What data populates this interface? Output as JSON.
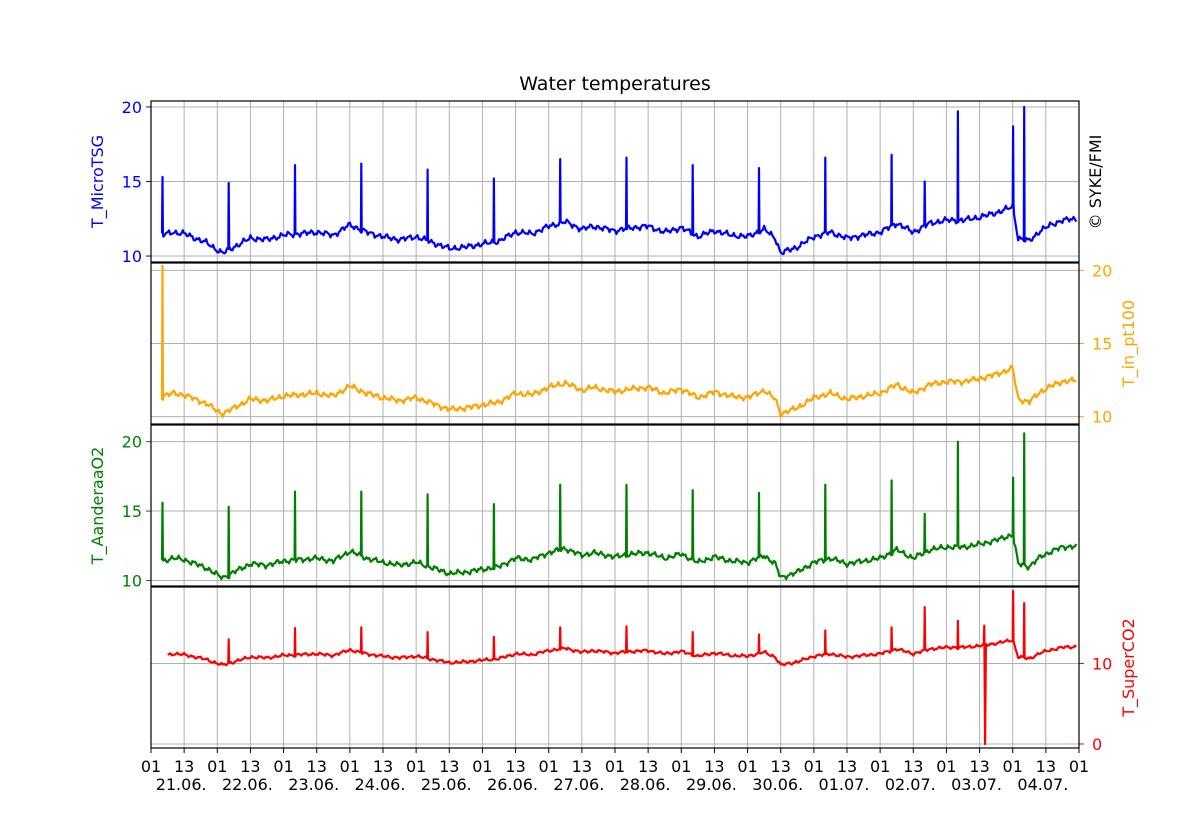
{
  "chart_data": {
    "type": "line",
    "title": "Water temperatures",
    "copyright": "© SYKE/FMI",
    "x_range_hours": [
      0,
      336
    ],
    "x_ticks": [
      "01",
      "13",
      "01",
      "13",
      "01",
      "13",
      "01",
      "13",
      "01",
      "13",
      "01",
      "13",
      "01",
      "13",
      "01",
      "13",
      "01",
      "13",
      "01",
      "13",
      "01",
      "13",
      "01",
      "13",
      "01",
      "13",
      "01",
      "13",
      "01"
    ],
    "date_labels": [
      "21.06.",
      "22.06.",
      "23.06.",
      "24.06.",
      "25.06.",
      "26.06.",
      "27.06.",
      "28.06.",
      "29.06.",
      "30.06.",
      "01.07.",
      "02.07.",
      "03.07.",
      "04.07."
    ],
    "grid": true,
    "panels": [
      {
        "series": "T_MicroTSG",
        "ylabel": "T_MicroTSG",
        "axis_side": "left",
        "color": "#0000ff",
        "ylim": [
          9.6,
          20.4
        ],
        "yticks": [
          10,
          15,
          20
        ],
        "spike_peaks": [
          15.3,
          14.9,
          16.1,
          16.2,
          15.8,
          15.2,
          16.5,
          16.6,
          16.1,
          15.9,
          16.6,
          16.8,
          15.0,
          19.7,
          18.7,
          20.0
        ],
        "data_begins_hour": 4
      },
      {
        "series": "T_in_pt100",
        "ylabel": "T_in_pt100",
        "axis_side": "right",
        "color": "#ffa500",
        "ylim": [
          9.5,
          20.5
        ],
        "yticks": [
          10,
          15,
          20
        ],
        "spike_peaks": [
          20.3
        ],
        "data_begins_hour": 4
      },
      {
        "series": "T_AanderaaO2",
        "ylabel": "T_AanderaaO2",
        "axis_side": "left",
        "color": "#008000",
        "ylim": [
          9.6,
          21.2
        ],
        "yticks": [
          10,
          15,
          20
        ],
        "spike_peaks": [
          15.6,
          15.3,
          16.4,
          16.4,
          16.2,
          15.5,
          16.9,
          16.9,
          16.5,
          16.3,
          16.9,
          17.2,
          14.8,
          20.0,
          17.4,
          20.6
        ],
        "data_begins_hour": 4
      },
      {
        "series": "T_SuperCO2",
        "ylabel": "T_SuperCO2",
        "axis_side": "right",
        "color": "#ff0000",
        "ylim": [
          -0.5,
          19.5
        ],
        "yticks": [
          0,
          10
        ],
        "spike_peaks": [
          13.0,
          13.0,
          14.4,
          14.5,
          13.9,
          13.3,
          14.5,
          14.6,
          13.9,
          13.6,
          14.1,
          14.5,
          17.0,
          15.3,
          19.0,
          17.5
        ],
        "dropout": {
          "hour": 302,
          "value": 0.0
        },
        "data_begins_hour": 6
      }
    ],
    "baseline": {
      "description": "hourly base temperature shared by all series (degC)",
      "hours": [
        0,
        4,
        8,
        12,
        16,
        20,
        24,
        26,
        30,
        36,
        42,
        48,
        54,
        60,
        66,
        72,
        78,
        84,
        90,
        96,
        102,
        108,
        114,
        120,
        126,
        132,
        138,
        144,
        150,
        156,
        160,
        168,
        174,
        180,
        186,
        192,
        198,
        204,
        210,
        216,
        222,
        226,
        228,
        234,
        240,
        246,
        252,
        258,
        264,
        270,
        276,
        282,
        288,
        294,
        300,
        306,
        312,
        314,
        318,
        322,
        326,
        330,
        336
      ],
      "values": [
        11.3,
        11.4,
        11.6,
        11.5,
        11.2,
        10.9,
        10.4,
        10.2,
        10.6,
        11.2,
        11.1,
        11.4,
        11.5,
        11.6,
        11.4,
        12.1,
        11.6,
        11.3,
        11.1,
        11.3,
        10.9,
        10.5,
        10.6,
        10.8,
        11.0,
        11.6,
        11.5,
        12.0,
        12.3,
        11.8,
        12.0,
        11.7,
        11.9,
        12.0,
        11.6,
        11.9,
        11.3,
        11.7,
        11.4,
        11.3,
        11.8,
        11.2,
        10.2,
        10.6,
        11.3,
        11.6,
        11.2,
        11.4,
        11.6,
        12.2,
        11.6,
        12.2,
        12.4,
        12.4,
        12.6,
        12.9,
        13.3,
        11.2,
        11.0,
        11.7,
        12.1,
        12.4,
        12.5
      ]
    },
    "spike_hours": [
      4,
      28,
      52,
      76,
      100,
      124,
      148,
      172,
      196,
      220,
      244,
      268,
      280,
      292,
      312,
      316
    ]
  }
}
